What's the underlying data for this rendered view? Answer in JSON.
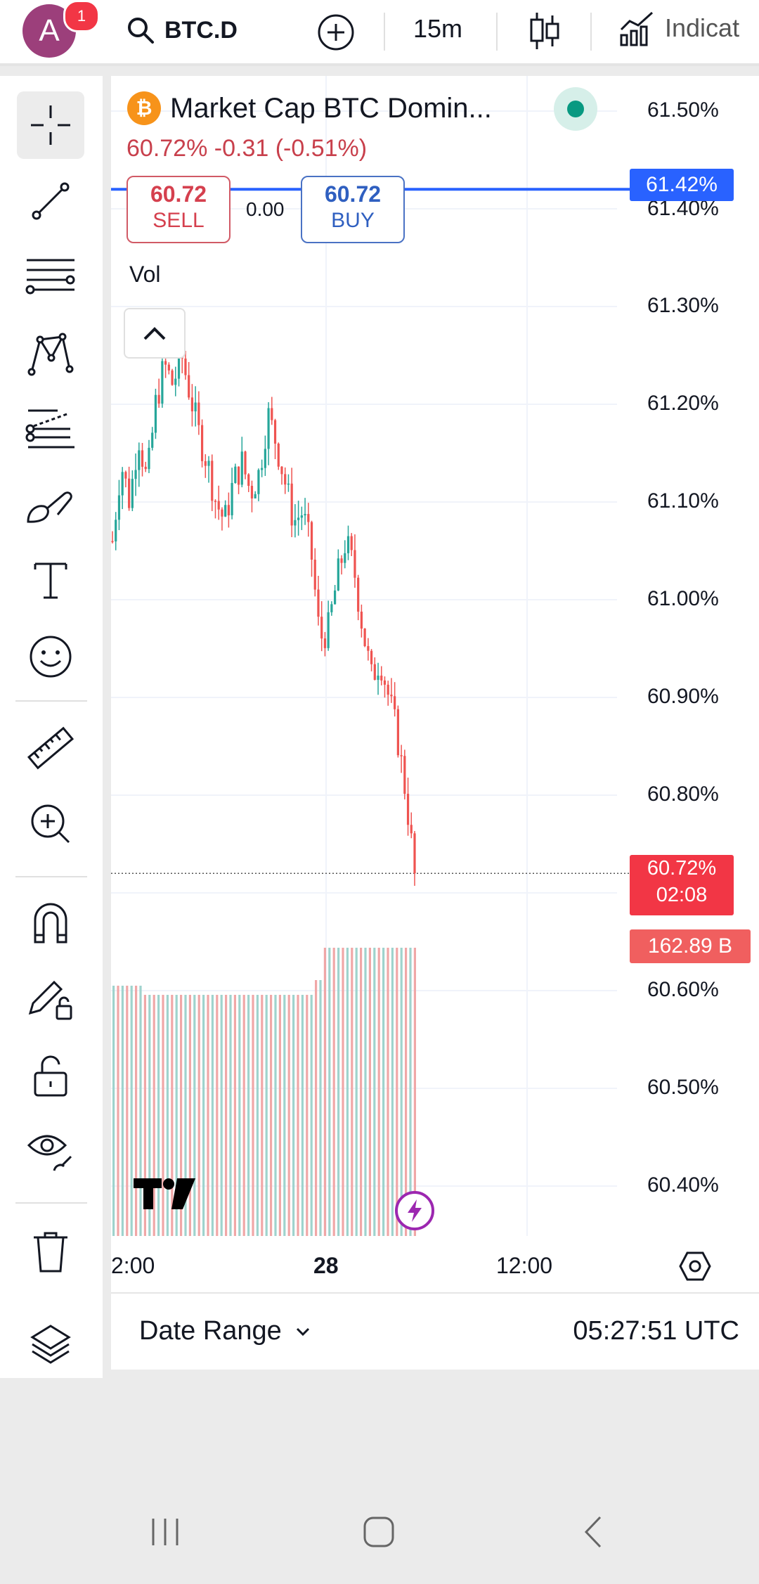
{
  "topbar": {
    "avatar_letter": "A",
    "notification_count": "1",
    "symbol": "BTC.D",
    "interval": "15m",
    "indicators_label": "Indicat"
  },
  "legend": {
    "title": "Market Cap BTC Domin...",
    "price": "60.72%",
    "change": "-0.31 (-0.51%)",
    "sell_price": "60.72",
    "sell_label": "SELL",
    "spread": "0.00",
    "buy_price": "60.72",
    "buy_label": "BUY",
    "volume_label": "Vol"
  },
  "price_axis": {
    "labels": [
      "61.50%",
      "61.40%",
      "61.30%",
      "61.20%",
      "61.10%",
      "61.00%",
      "60.90%",
      "60.80%",
      "60.60%",
      "60.50%",
      "60.40%"
    ],
    "line_tag": "61.42%",
    "current_price": "60.72%",
    "countdown": "02:08",
    "volume_tag": "162.89 B"
  },
  "time_axis": {
    "labels": [
      "2:00",
      "28",
      "12:00"
    ]
  },
  "footer": {
    "date_range_label": "Date Range",
    "time": "05:27:51 UTC"
  },
  "colors": {
    "up": "#26a69a",
    "down": "#ef5350",
    "accent": "#2962ff",
    "current": "#f23645"
  },
  "chart_data": {
    "type": "candlestick",
    "symbol": "BTC.D",
    "interval": "15m",
    "ylim": [
      60.36,
      61.52
    ],
    "horizontal_line": 61.42,
    "current_price": 60.72,
    "close_path": [
      61.06,
      61.14,
      61.1,
      61.17,
      61.12,
      61.2,
      61.24,
      61.22,
      61.25,
      61.21,
      61.17,
      61.14,
      61.1,
      61.08,
      61.12,
      61.14,
      61.11,
      61.13,
      61.19,
      61.16,
      61.12,
      61.08,
      61.09,
      61.05,
      60.96,
      60.97,
      61.02,
      61.06,
      61.03,
      60.97,
      60.92,
      60.94,
      60.9,
      60.86,
      60.8,
      60.72
    ]
  }
}
